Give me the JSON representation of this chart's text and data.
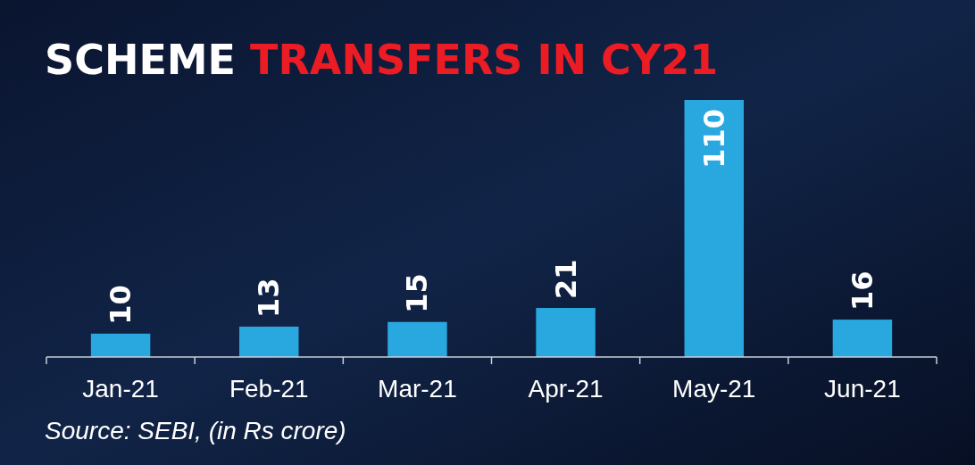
{
  "chart_data": {
    "type": "bar",
    "title": "SCHEME TRANSFERS IN CY21",
    "categories": [
      "Jan-21",
      "Feb-21",
      "Mar-21",
      "Apr-21",
      "May-21",
      "Jun-21"
    ],
    "values": [
      10,
      13,
      15,
      21,
      110,
      16
    ],
    "color": "#29a8e0",
    "data_labels": true,
    "annotations": [
      "Source: SEBI, (in Rs crore)"
    ]
  }
}
